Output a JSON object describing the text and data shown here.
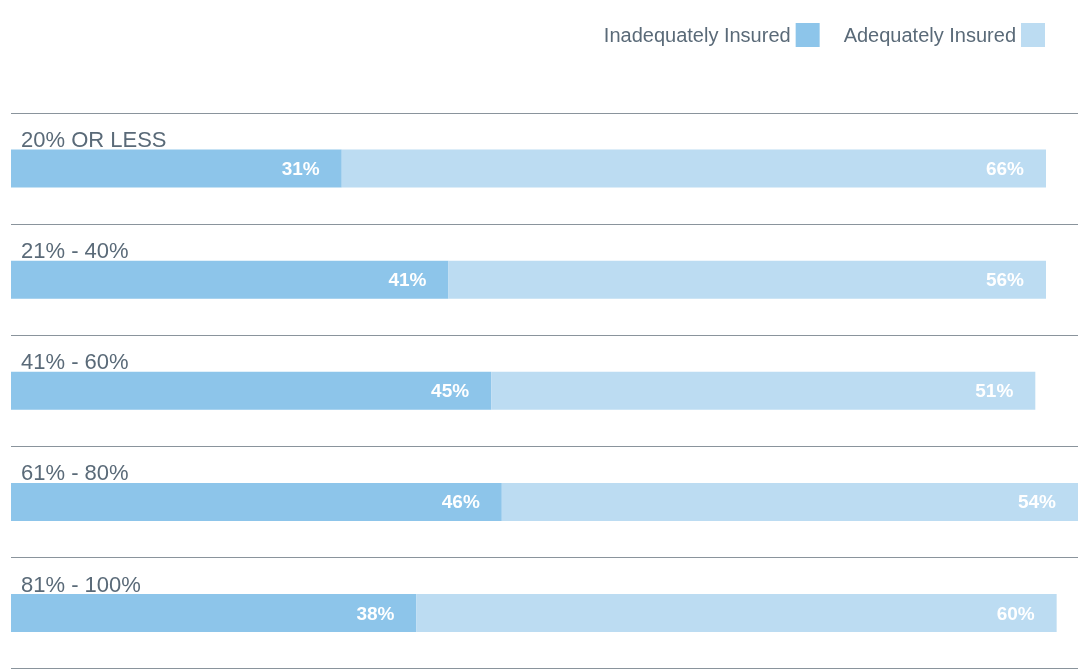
{
  "chart_data": {
    "type": "bar",
    "orientation": "horizontal",
    "stacked": true,
    "categories": [
      "20% OR LESS",
      "21% - 40%",
      "41% - 60%",
      "61% - 80%",
      "81% - 100%"
    ],
    "series": [
      {
        "name": "Inadequately Insured",
        "color": "#8dc5ea",
        "values": [
          31,
          41,
          45,
          46,
          38
        ],
        "value_labels": [
          "31%",
          "41%",
          "45%",
          "46%",
          "38%"
        ]
      },
      {
        "name": "Adequately Insured",
        "color": "#bcdcf2",
        "values": [
          66,
          56,
          51,
          54,
          60
        ],
        "value_labels": [
          "66%",
          "56%",
          "51%",
          "54%",
          "60%"
        ]
      }
    ],
    "legend": "top right",
    "grid": "y"
  }
}
